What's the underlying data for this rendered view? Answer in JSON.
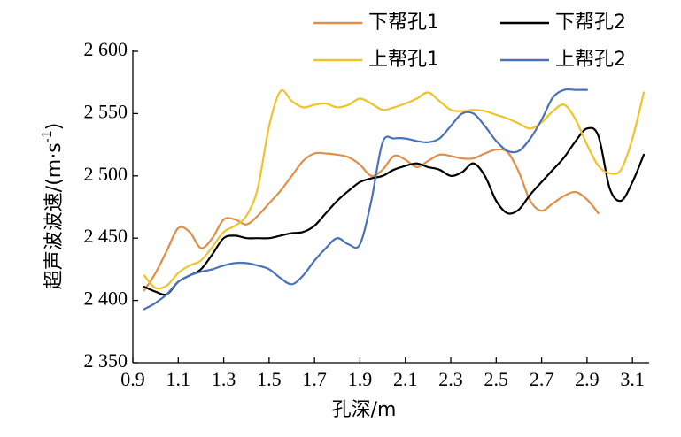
{
  "chart_data": {
    "type": "line",
    "xlabel": "孔深/m",
    "ylabel": "超声波波速/(m·s⁻¹)",
    "xlim": [
      0.9,
      3.15
    ],
    "ylim": [
      2350,
      2600
    ],
    "xticks": [
      0.9,
      1.1,
      1.3,
      1.5,
      1.7,
      1.9,
      2.1,
      2.3,
      2.5,
      2.7,
      2.9,
      3.1
    ],
    "xtick_labels": [
      "0.9",
      "1.1",
      "1.3",
      "1.5",
      "1.7",
      "1.9",
      "2.1",
      "2.3",
      "2.5",
      "2.7",
      "2.9",
      "3.1"
    ],
    "yticks": [
      2350,
      2400,
      2450,
      2500,
      2550,
      2600
    ],
    "ytick_labels": [
      "2 350",
      "2 400",
      "2 450",
      "2 500",
      "2 550",
      "2 600"
    ],
    "legend_position": "top-right",
    "series": [
      {
        "name": "下帮孔1",
        "color": "#E28E46",
        "x": [
          0.95,
          1.0,
          1.05,
          1.1,
          1.15,
          1.2,
          1.25,
          1.3,
          1.35,
          1.4,
          1.45,
          1.5,
          1.55,
          1.6,
          1.65,
          1.7,
          1.75,
          1.8,
          1.85,
          1.9,
          1.95,
          2.0,
          2.05,
          2.1,
          2.15,
          2.2,
          2.25,
          2.3,
          2.35,
          2.4,
          2.45,
          2.5,
          2.55,
          2.6,
          2.65,
          2.7,
          2.75,
          2.8,
          2.85,
          2.9,
          2.95
        ],
        "y": [
          2408,
          2422,
          2440,
          2458,
          2455,
          2442,
          2450,
          2465,
          2465,
          2461,
          2468,
          2478,
          2488,
          2500,
          2512,
          2518,
          2518,
          2517,
          2515,
          2509,
          2500,
          2505,
          2516,
          2513,
          2507,
          2512,
          2517,
          2516,
          2514,
          2514,
          2518,
          2521,
          2519,
          2503,
          2480,
          2472,
          2478,
          2484,
          2487,
          2481,
          2470
        ]
      },
      {
        "name": "下帮孔2",
        "color": "#000000",
        "x": [
          0.95,
          1.0,
          1.05,
          1.1,
          1.15,
          1.2,
          1.25,
          1.3,
          1.35,
          1.4,
          1.45,
          1.5,
          1.55,
          1.6,
          1.65,
          1.7,
          1.75,
          1.8,
          1.85,
          1.9,
          1.95,
          2.0,
          2.05,
          2.1,
          2.15,
          2.2,
          2.25,
          2.3,
          2.35,
          2.4,
          2.45,
          2.5,
          2.55,
          2.6,
          2.65,
          2.7,
          2.75,
          2.8,
          2.85,
          2.9,
          2.95,
          3.0,
          3.05,
          3.1,
          3.15
        ],
        "y": [
          2411,
          2407,
          2405,
          2415,
          2420,
          2425,
          2437,
          2450,
          2452,
          2450,
          2450,
          2450,
          2452,
          2454,
          2455,
          2460,
          2470,
          2480,
          2488,
          2495,
          2498,
          2500,
          2505,
          2508,
          2510,
          2507,
          2505,
          2500,
          2503,
          2510,
          2500,
          2480,
          2470,
          2473,
          2485,
          2495,
          2505,
          2515,
          2528,
          2538,
          2532,
          2490,
          2480,
          2495,
          2517
        ]
      },
      {
        "name": "上帮孔1",
        "color": "#F0C22B",
        "x": [
          0.95,
          1.0,
          1.05,
          1.1,
          1.15,
          1.2,
          1.25,
          1.3,
          1.35,
          1.4,
          1.45,
          1.5,
          1.55,
          1.6,
          1.65,
          1.7,
          1.75,
          1.8,
          1.85,
          1.9,
          1.95,
          2.0,
          2.05,
          2.1,
          2.15,
          2.2,
          2.25,
          2.3,
          2.35,
          2.4,
          2.45,
          2.5,
          2.55,
          2.6,
          2.65,
          2.7,
          2.75,
          2.8,
          2.85,
          2.9,
          2.95,
          3.0,
          3.05,
          3.1,
          3.15
        ],
        "y": [
          2420,
          2410,
          2412,
          2422,
          2428,
          2432,
          2443,
          2455,
          2460,
          2468,
          2490,
          2540,
          2568,
          2560,
          2555,
          2557,
          2558,
          2555,
          2557,
          2562,
          2558,
          2553,
          2555,
          2558,
          2562,
          2567,
          2560,
          2553,
          2552,
          2553,
          2552,
          2549,
          2546,
          2542,
          2538,
          2543,
          2552,
          2557,
          2545,
          2525,
          2508,
          2502,
          2505,
          2530,
          2567
        ]
      },
      {
        "name": "上帮孔2",
        "color": "#4A72BA",
        "x": [
          0.95,
          1.0,
          1.05,
          1.1,
          1.15,
          1.2,
          1.25,
          1.3,
          1.35,
          1.4,
          1.45,
          1.5,
          1.55,
          1.6,
          1.65,
          1.7,
          1.75,
          1.8,
          1.85,
          1.9,
          1.95,
          2.0,
          2.05,
          2.1,
          2.15,
          2.2,
          2.25,
          2.3,
          2.35,
          2.4,
          2.45,
          2.5,
          2.55,
          2.6,
          2.65,
          2.7,
          2.75,
          2.8,
          2.85,
          2.9
        ],
        "y": [
          2393,
          2398,
          2405,
          2415,
          2420,
          2423,
          2425,
          2428,
          2430,
          2430,
          2428,
          2425,
          2418,
          2413,
          2420,
          2432,
          2442,
          2450,
          2445,
          2445,
          2480,
          2527,
          2530,
          2530,
          2528,
          2527,
          2530,
          2540,
          2550,
          2550,
          2540,
          2528,
          2520,
          2520,
          2530,
          2545,
          2563,
          2569,
          2569,
          2569
        ]
      }
    ]
  }
}
